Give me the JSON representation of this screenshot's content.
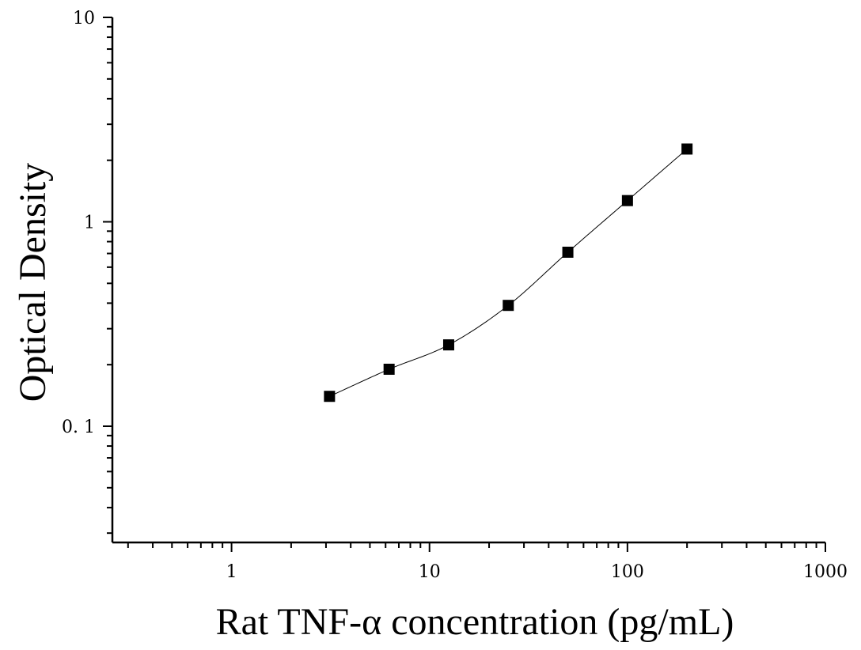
{
  "chart_data": {
    "type": "scatter",
    "xlabel": "Rat TNF-α concentration (pg/mL)",
    "ylabel": "Optical Density",
    "x_scale": "log",
    "y_scale": "log",
    "xlim": [
      0.25,
      1000
    ],
    "ylim": [
      0.027,
      10
    ],
    "x_ticks": [
      1,
      10,
      100,
      1000
    ],
    "x_tick_labels": [
      "1",
      "10",
      "100",
      "1000"
    ],
    "y_ticks": [
      0.1,
      1,
      10
    ],
    "y_tick_labels": [
      "0. 1",
      "1",
      "10"
    ],
    "grid": false,
    "legend": "none",
    "marker": "square",
    "color": "#000000",
    "x": [
      3.125,
      6.25,
      12.5,
      25,
      50,
      100,
      200
    ],
    "y": [
      0.14,
      0.19,
      0.25,
      0.39,
      0.71,
      1.27,
      2.27
    ],
    "fit_curve": true
  }
}
